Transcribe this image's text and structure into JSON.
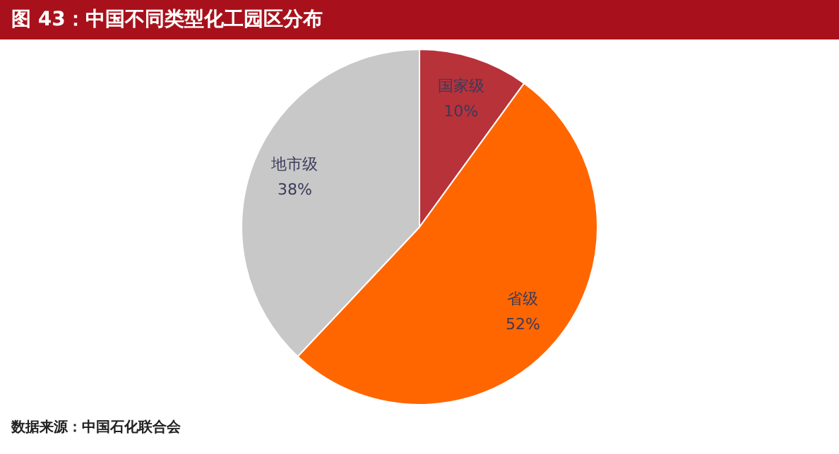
{
  "chart_data": {
    "type": "pie",
    "title": "图 43：中国不同类型化工园区分布",
    "categories": [
      "国家级",
      "省级",
      "地市级"
    ],
    "values": [
      10,
      52,
      38
    ],
    "colors": [
      "#b8323a",
      "#ff6600",
      "#c8c8c8"
    ],
    "value_labels": [
      "10%",
      "52%",
      "38%"
    ],
    "annotations": [
      "数据来源：中国石化联合会"
    ]
  }
}
